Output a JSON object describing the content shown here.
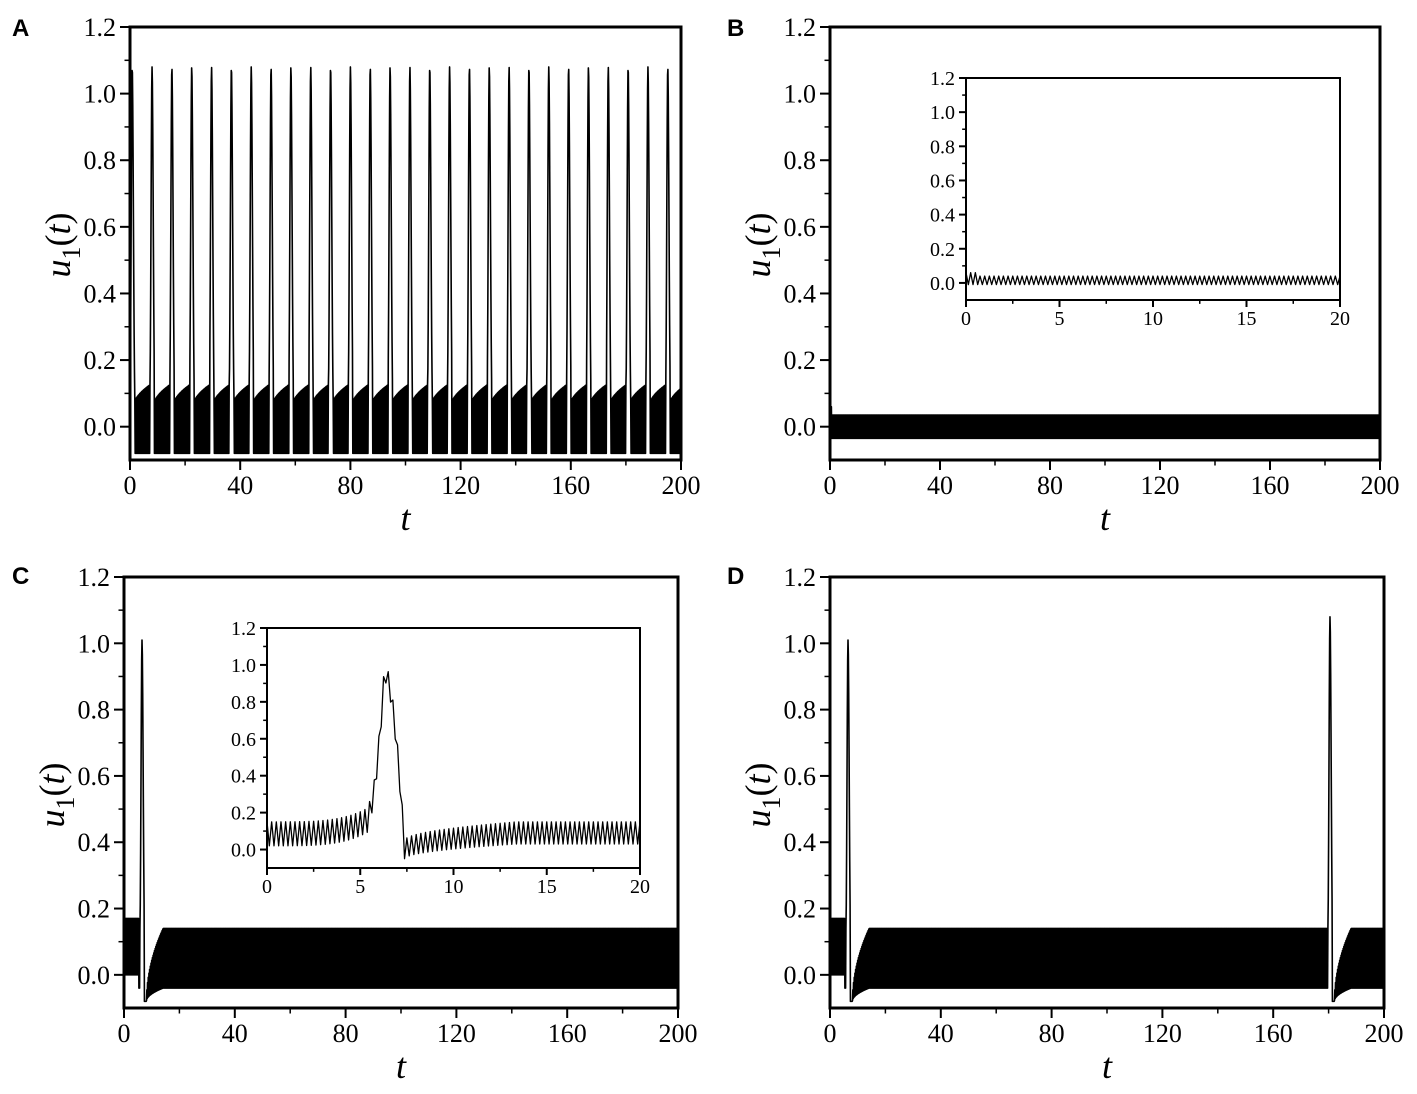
{
  "chart_data": [
    {
      "id": "A",
      "type": "line",
      "panel_label": "A",
      "xlabel": "t",
      "ylabel": {
        "main": "u",
        "sub": "1",
        "arg": "t"
      },
      "xlim": [
        0,
        200
      ],
      "ylim": [
        -0.1,
        1.2
      ],
      "xticks": [
        0,
        40,
        80,
        120,
        160,
        200
      ],
      "yticks": [
        0.0,
        0.2,
        0.4,
        0.6,
        0.8,
        1.0,
        1.2
      ],
      "series": [
        {
          "waveform": "periodic_bursting",
          "spike_times": [
            0.8,
            8,
            15.2,
            22.4,
            29.6,
            36.8,
            44,
            51.2,
            58.4,
            65.6,
            72.8,
            80,
            87.2,
            94.4,
            101.6,
            108.8,
            116,
            123.2,
            130.4,
            137.6,
            144.8,
            152,
            159.2,
            166.4,
            173.6,
            180.8,
            188,
            195.2
          ],
          "spike_peak": 1.08,
          "band_low": -0.08,
          "band_high_start": 0.05,
          "band_high_end": 0.13,
          "fast_period": 0.25
        }
      ],
      "grid": false
    },
    {
      "id": "B",
      "type": "line",
      "panel_label": "B",
      "xlabel": "t",
      "ylabel": {
        "main": "u",
        "sub": "1",
        "arg": "t"
      },
      "xlim": [
        0,
        200
      ],
      "ylim": [
        -0.1,
        1.2
      ],
      "xticks": [
        0,
        40,
        80,
        120,
        160,
        200
      ],
      "yticks": [
        0.0,
        0.2,
        0.4,
        0.6,
        0.8,
        1.0,
        1.2
      ],
      "series": [
        {
          "waveform": "small_oscillation",
          "center": 0.0,
          "amplitude": 0.035,
          "initial_peak": 0.06,
          "fast_period": 0.25
        }
      ],
      "inset": {
        "xlim": [
          0,
          20
        ],
        "ylim": [
          -0.1,
          1.2
        ],
        "xticks": [
          0,
          5,
          10,
          15,
          20
        ],
        "yticks": [
          0.0,
          0.2,
          0.4,
          0.6,
          0.8,
          1.0,
          1.2
        ],
        "series": [
          {
            "waveform": "small_oscillation",
            "center": 0.015,
            "amplitude": 0.025,
            "initial_peak": 0.06,
            "fast_period": 0.25
          }
        ]
      },
      "grid": false
    },
    {
      "id": "C",
      "type": "line",
      "panel_label": "C",
      "xlabel": "t",
      "ylabel": {
        "main": "u",
        "sub": "1",
        "arg": "t"
      },
      "xlim": [
        0,
        200
      ],
      "ylim": [
        -0.1,
        1.2
      ],
      "xticks": [
        0,
        40,
        80,
        120,
        160,
        200
      ],
      "yticks": [
        0.0,
        0.2,
        0.4,
        0.6,
        0.8,
        1.0,
        1.2
      ],
      "series": [
        {
          "waveform": "single_spike",
          "spike_times": [
            6.5
          ],
          "spike_peak": 1.01,
          "band_low": -0.04,
          "band_high": 0.14,
          "undershoot": -0.08,
          "fast_period": 0.25
        }
      ],
      "inset": {
        "xlim": [
          0,
          20
        ],
        "ylim": [
          -0.1,
          1.2
        ],
        "xticks": [
          0,
          5,
          10,
          15,
          20
        ],
        "yticks": [
          0.0,
          0.2,
          0.4,
          0.6,
          0.8,
          1.0,
          1.2
        ],
        "series": [
          {
            "waveform": "single_spike_zoom",
            "spike_start": 5.5,
            "spike_peak_time": 6.3,
            "spike_end": 7.4,
            "spike_peak": 1.01,
            "band_low": 0.02,
            "band_high": 0.15,
            "fast_period": 0.25
          }
        ]
      },
      "grid": false
    },
    {
      "id": "D",
      "type": "line",
      "panel_label": "D",
      "xlabel": "t",
      "ylabel": {
        "main": "u",
        "sub": "1",
        "arg": "t"
      },
      "xlim": [
        0,
        200
      ],
      "ylim": [
        -0.1,
        1.2
      ],
      "xticks": [
        0,
        40,
        80,
        120,
        160,
        200
      ],
      "yticks": [
        0.0,
        0.2,
        0.4,
        0.6,
        0.8,
        1.0,
        1.2
      ],
      "series": [
        {
          "waveform": "two_spikes",
          "spike_times": [
            6.5,
            180.5
          ],
          "spike_peaks": [
            1.01,
            1.08
          ],
          "band_low": -0.04,
          "band_high": 0.14,
          "undershoot": -0.08,
          "fast_period": 0.25
        }
      ],
      "grid": false
    }
  ]
}
